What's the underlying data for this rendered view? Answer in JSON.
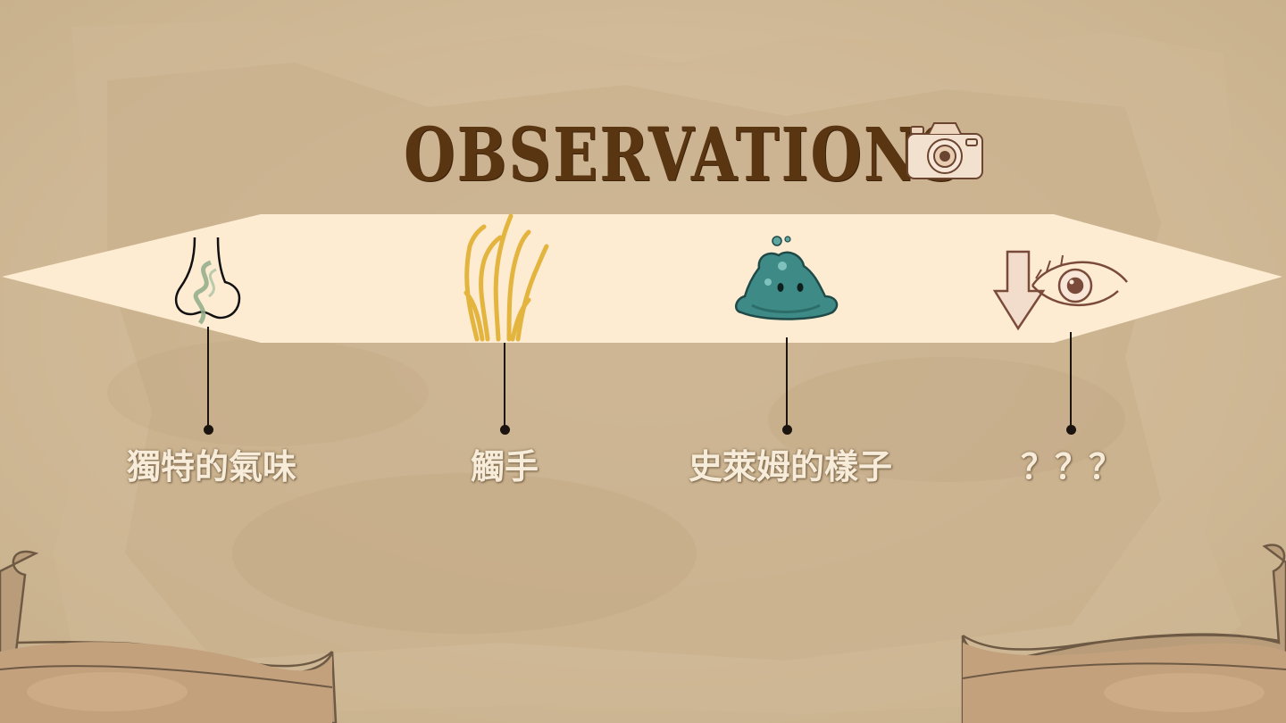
{
  "slide": {
    "title": "OBSERVATIONS",
    "title_color": "#5a3512",
    "band_color": "#fdebd2",
    "label_color": "#f7ecd9",
    "observations": [
      {
        "label": "獨特的氣味",
        "icon": "nose-icon"
      },
      {
        "label": "觸手",
        "icon": "tentacles-icon"
      },
      {
        "label": "史萊姆的樣子",
        "icon": "slime-icon"
      },
      {
        "label": "？？？",
        "icon": "eye-icon"
      }
    ],
    "decor": [
      "camera-icon",
      "scroll-banner-left",
      "scroll-banner-right"
    ]
  }
}
